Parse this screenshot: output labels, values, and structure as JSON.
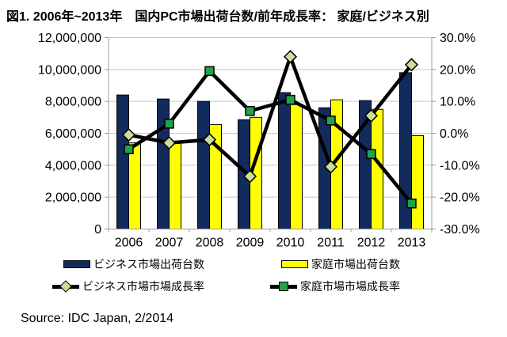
{
  "title": "図1. 2006年~2013年　国内PC市場出荷台数/前年成長率： 家庭/ビジネス別",
  "source": "Source: IDC Japan, 2/2014",
  "colors": {
    "business_bar": "#122A5C",
    "home_bar": "#FFFF00",
    "line": "#000000",
    "business_marker_fill": "#CBDC9B",
    "home_marker_fill": "#21A24B",
    "gridline": "#C8C8C8",
    "axis": "#9C9C9C",
    "text": "#000000"
  },
  "chart_data": {
    "type": "combo-bar-line",
    "categories": [
      "2006",
      "2007",
      "2008",
      "2009",
      "2010",
      "2011",
      "2012",
      "2013"
    ],
    "bar_series": [
      {
        "name": "ビジネス市場出荷台数",
        "axis": "left",
        "color_key": "business_bar",
        "values": [
          8400000,
          8150000,
          8000000,
          6850000,
          8550000,
          7600000,
          8050000,
          9800000
        ]
      },
      {
        "name": "家庭市場出荷台数",
        "axis": "left",
        "color_key": "home_bar",
        "values": [
          5400000,
          5400000,
          6550000,
          7000000,
          7800000,
          8100000,
          7500000,
          5850000
        ]
      }
    ],
    "line_series": [
      {
        "name": "ビジネス市場市場成長率",
        "axis": "right",
        "marker": "diamond",
        "marker_color_key": "business_marker_fill",
        "values": [
          -0.5,
          -3.0,
          -2.0,
          -13.5,
          24.0,
          -10.5,
          5.5,
          21.5
        ]
      },
      {
        "name": "家庭市場市場成長率",
        "axis": "right",
        "marker": "square",
        "marker_color_key": "home_marker_fill",
        "values": [
          -5.0,
          3.0,
          19.5,
          7.0,
          10.5,
          4.0,
          -6.5,
          -22.0
        ]
      }
    ],
    "left_axis": {
      "min": 0,
      "max": 12000000,
      "step": 2000000,
      "tick_labels": [
        "0",
        "2,000,000",
        "4,000,000",
        "6,000,000",
        "8,000,000",
        "10,000,000",
        "12,000,000"
      ]
    },
    "right_axis": {
      "min": -30,
      "max": 30,
      "step": 10,
      "tick_labels": [
        "-30.0%",
        "-20.0%",
        "-10.0%",
        "0.0%",
        "10.0%",
        "20.0%",
        "30.0%"
      ]
    },
    "grid": true,
    "legend_position": "bottom"
  }
}
